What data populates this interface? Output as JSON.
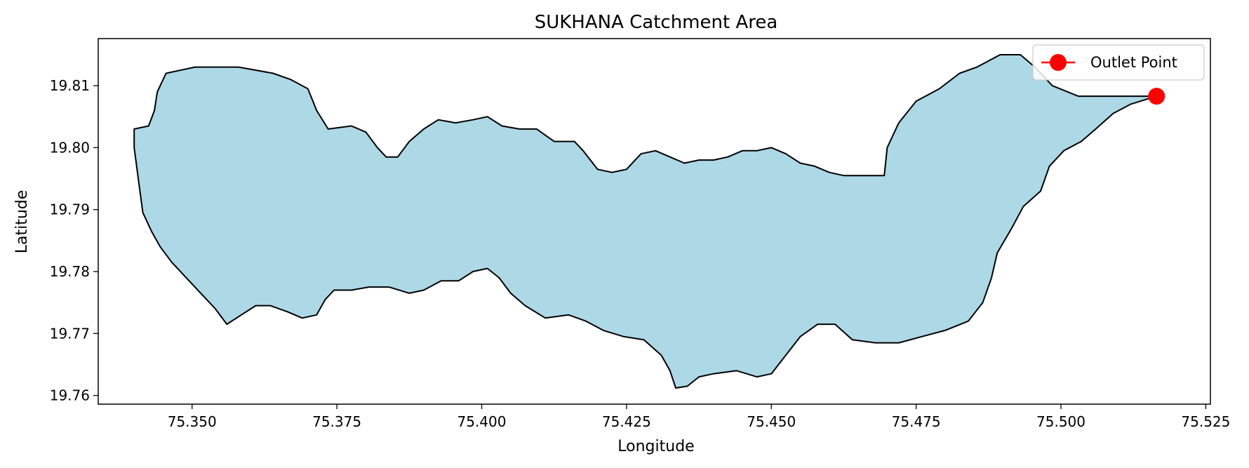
{
  "chart_data": {
    "type": "map",
    "title": "SUKHANA Catchment Area",
    "xlabel": "Longitude",
    "ylabel": "Latitude",
    "xlim": [
      75.3338,
      75.5258
    ],
    "ylim": [
      19.7586,
      19.8176
    ],
    "xticks": [
      "75.350",
      "75.375",
      "75.400",
      "75.425",
      "75.450",
      "75.475",
      "75.500",
      "75.525"
    ],
    "yticks": [
      "19.76",
      "19.77",
      "19.78",
      "19.79",
      "19.80",
      "19.81"
    ],
    "grid": false,
    "legend": {
      "position": "top-right",
      "entries": [
        "Outlet Point"
      ]
    },
    "colors": {
      "catchment_fill": "#add8e6",
      "catchment_edge": "#000000",
      "outlet": "#ff0000"
    },
    "outlet_point": {
      "name": "Outlet Point",
      "lon": 75.5165,
      "lat": 19.8083
    },
    "catchment_boundary": [
      [
        75.3505,
        19.813
      ],
      [
        75.3535,
        19.813
      ],
      [
        75.358,
        19.813
      ],
      [
        75.361,
        19.8125
      ],
      [
        75.364,
        19.812
      ],
      [
        75.367,
        19.811
      ],
      [
        75.37,
        19.8095
      ],
      [
        75.3715,
        19.806
      ],
      [
        75.3735,
        19.803
      ],
      [
        75.3775,
        19.8035
      ],
      [
        75.38,
        19.8025
      ],
      [
        75.382,
        19.8
      ],
      [
        75.3835,
        19.7985
      ],
      [
        75.3855,
        19.7985
      ],
      [
        75.3875,
        19.801
      ],
      [
        75.39,
        19.803
      ],
      [
        75.3925,
        19.8045
      ],
      [
        75.3955,
        19.804
      ],
      [
        75.3985,
        19.8045
      ],
      [
        75.401,
        19.805
      ],
      [
        75.4035,
        19.8035
      ],
      [
        75.4065,
        19.803
      ],
      [
        75.4095,
        19.803
      ],
      [
        75.4125,
        19.801
      ],
      [
        75.416,
        19.801
      ],
      [
        75.4175,
        19.7995
      ],
      [
        75.42,
        19.7965
      ],
      [
        75.4225,
        19.796
      ],
      [
        75.425,
        19.7965
      ],
      [
        75.4275,
        19.799
      ],
      [
        75.43,
        19.7995
      ],
      [
        75.4325,
        19.7985
      ],
      [
        75.435,
        19.7975
      ],
      [
        75.4375,
        19.798
      ],
      [
        75.44,
        19.798
      ],
      [
        75.4425,
        19.7985
      ],
      [
        75.445,
        19.7995
      ],
      [
        75.4475,
        19.7995
      ],
      [
        75.45,
        19.8
      ],
      [
        75.4525,
        19.799
      ],
      [
        75.455,
        19.7975
      ],
      [
        75.4575,
        19.797
      ],
      [
        75.46,
        19.796
      ],
      [
        75.4625,
        19.7955
      ],
      [
        75.465,
        19.7955
      ],
      [
        75.4675,
        19.7955
      ],
      [
        75.4695,
        19.7955
      ],
      [
        75.47,
        19.8
      ],
      [
        75.472,
        19.804
      ],
      [
        75.475,
        19.8075
      ],
      [
        75.479,
        19.8095
      ],
      [
        75.4825,
        19.812
      ],
      [
        75.4855,
        19.813
      ],
      [
        75.4895,
        19.815
      ],
      [
        75.493,
        19.815
      ],
      [
        75.4955,
        19.813
      ],
      [
        75.4985,
        19.81
      ],
      [
        75.503,
        19.8083
      ],
      [
        75.5165,
        19.8083
      ],
      [
        75.512,
        19.807
      ],
      [
        75.509,
        19.8055
      ],
      [
        75.506,
        19.803
      ],
      [
        75.5035,
        19.801
      ],
      [
        75.5005,
        19.7995
      ],
      [
        75.498,
        19.797
      ],
      [
        75.4965,
        19.793
      ],
      [
        75.4935,
        19.7905
      ],
      [
        75.4915,
        19.787
      ],
      [
        75.489,
        19.783
      ],
      [
        75.488,
        19.779
      ],
      [
        75.4865,
        19.775
      ],
      [
        75.484,
        19.772
      ],
      [
        75.48,
        19.7705
      ],
      [
        75.476,
        19.7695
      ],
      [
        75.472,
        19.7685
      ],
      [
        75.468,
        19.7685
      ],
      [
        75.464,
        19.769
      ],
      [
        75.461,
        19.7715
      ],
      [
        75.458,
        19.7715
      ],
      [
        75.455,
        19.7695
      ],
      [
        75.4525,
        19.7665
      ],
      [
        75.45,
        19.7635
      ],
      [
        75.4475,
        19.763
      ],
      [
        75.444,
        19.764
      ],
      [
        75.44,
        19.7635
      ],
      [
        75.4375,
        19.763
      ],
      [
        75.4355,
        19.7615
      ],
      [
        75.4335,
        19.7612
      ],
      [
        75.4325,
        19.764
      ],
      [
        75.431,
        19.7665
      ],
      [
        75.428,
        19.769
      ],
      [
        75.4245,
        19.7695
      ],
      [
        75.421,
        19.7705
      ],
      [
        75.418,
        19.772
      ],
      [
        75.415,
        19.773
      ],
      [
        75.411,
        19.7725
      ],
      [
        75.4075,
        19.7745
      ],
      [
        75.405,
        19.7765
      ],
      [
        75.403,
        19.779
      ],
      [
        75.401,
        19.7805
      ],
      [
        75.3985,
        19.78
      ],
      [
        75.396,
        19.7785
      ],
      [
        75.393,
        19.7785
      ],
      [
        75.39,
        19.777
      ],
      [
        75.3875,
        19.7765
      ],
      [
        75.384,
        19.7775
      ],
      [
        75.3805,
        19.7775
      ],
      [
        75.3775,
        19.777
      ],
      [
        75.3745,
        19.777
      ],
      [
        75.373,
        19.7755
      ],
      [
        75.3715,
        19.773
      ],
      [
        75.369,
        19.7725
      ],
      [
        75.3665,
        19.7735
      ],
      [
        75.3635,
        19.7745
      ],
      [
        75.361,
        19.7745
      ],
      [
        75.3585,
        19.773
      ],
      [
        75.356,
        19.7715
      ],
      [
        75.354,
        19.774
      ],
      [
        75.3515,
        19.7765
      ],
      [
        75.349,
        19.779
      ],
      [
        75.3465,
        19.7815
      ],
      [
        75.3445,
        19.784
      ],
      [
        75.343,
        19.7865
      ],
      [
        75.3415,
        19.7895
      ],
      [
        75.341,
        19.793
      ],
      [
        75.3405,
        19.7965
      ],
      [
        75.34,
        19.8
      ],
      [
        75.34,
        19.803
      ],
      [
        75.3425,
        19.8035
      ],
      [
        75.3435,
        19.806
      ],
      [
        75.344,
        19.809
      ],
      [
        75.3455,
        19.812
      ]
    ]
  }
}
